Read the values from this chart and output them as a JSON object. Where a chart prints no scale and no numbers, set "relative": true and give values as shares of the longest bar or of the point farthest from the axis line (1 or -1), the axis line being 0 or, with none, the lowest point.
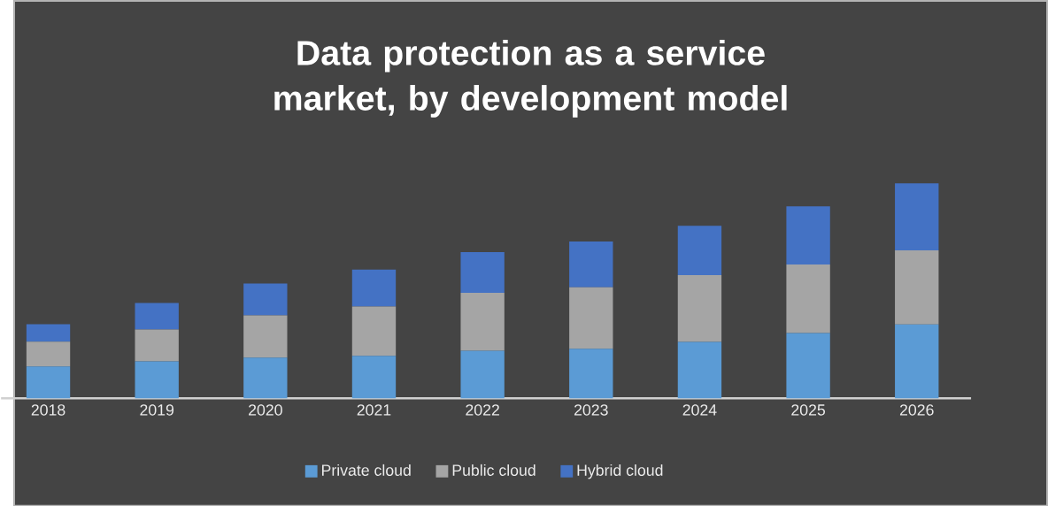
{
  "chart_data": {
    "type": "bar",
    "title": "Data protection as a service market, by development model",
    "categories": [
      "2018",
      "2019",
      "2020",
      "2021",
      "2022",
      "2023",
      "2024",
      "2025",
      "2026"
    ],
    "stacked": true,
    "relative": true,
    "legend": "bottom",
    "series": [
      {
        "name": "Private cloud",
        "color": "#5b9bd5",
        "values": [
          0.148,
          0.172,
          0.189,
          0.197,
          0.221,
          0.23,
          0.262,
          0.303,
          0.344
        ]
      },
      {
        "name": "Public cloud",
        "color": "#a5a5a5",
        "values": [
          0.115,
          0.148,
          0.197,
          0.23,
          0.27,
          0.287,
          0.311,
          0.32,
          0.344
        ]
      },
      {
        "name": "Hybrid cloud",
        "color": "#4472c4",
        "values": [
          0.082,
          0.123,
          0.148,
          0.172,
          0.189,
          0.213,
          0.23,
          0.27,
          0.312
        ]
      }
    ]
  }
}
